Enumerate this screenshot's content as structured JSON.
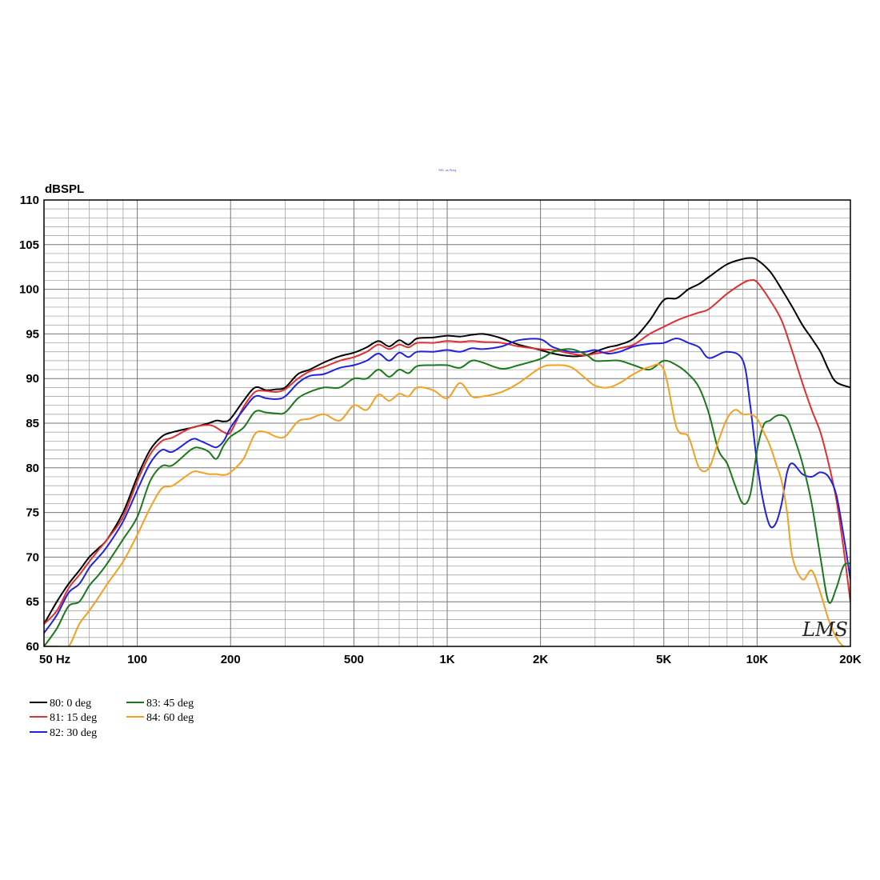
{
  "chart_data": {
    "type": "line",
    "title": "SPL vs Freq",
    "ylabel": "dBSPL",
    "xlabel": "",
    "x_scale": "log",
    "xlim": [
      50,
      20000
    ],
    "ylim": [
      60,
      110
    ],
    "grid": true,
    "legend_position": "bottom-left",
    "x_tick_labels": [
      {
        "value": 50,
        "label": "50  Hz"
      },
      {
        "value": 100,
        "label": "100"
      },
      {
        "value": 200,
        "label": "200"
      },
      {
        "value": 500,
        "label": "500"
      },
      {
        "value": 1000,
        "label": "1K"
      },
      {
        "value": 2000,
        "label": "2K"
      },
      {
        "value": 5000,
        "label": "5K"
      },
      {
        "value": 10000,
        "label": "10K"
      },
      {
        "value": 20000,
        "label": "20K"
      }
    ],
    "y_tick_labels": [
      "60",
      "65",
      "70",
      "75",
      "80",
      "85",
      "90",
      "95",
      "100",
      "105",
      "110"
    ],
    "watermark": "LMS",
    "series": [
      {
        "name": "80: 0 deg",
        "color": "#000000",
        "x": [
          50,
          55,
          60,
          65,
          70,
          75,
          80,
          90,
          100,
          110,
          120,
          130,
          150,
          170,
          180,
          190,
          200,
          220,
          240,
          260,
          280,
          300,
          330,
          360,
          400,
          450,
          500,
          550,
          600,
          650,
          700,
          750,
          800,
          900,
          1000,
          1100,
          1200,
          1300,
          1400,
          1500,
          1700,
          2000,
          2200,
          2500,
          2800,
          3000,
          3300,
          3600,
          4000,
          4500,
          5000,
          5500,
          6000,
          6500,
          7000,
          8000,
          9000,
          9500,
          10000,
          11000,
          12000,
          13000,
          14000,
          15000,
          16000,
          17000,
          18000,
          20000
        ],
        "y": [
          62.5,
          65,
          67,
          68.5,
          70,
          71,
          72,
          75,
          79,
          82,
          83.5,
          84,
          84.5,
          85,
          85.3,
          85.2,
          85.5,
          87.5,
          89,
          88.7,
          88.8,
          89,
          90.5,
          91,
          91.8,
          92.5,
          92.9,
          93.5,
          94.2,
          93.6,
          94.3,
          93.8,
          94.5,
          94.6,
          94.8,
          94.7,
          94.9,
          95,
          94.8,
          94.5,
          93.8,
          93.2,
          92.8,
          92.5,
          92.6,
          93,
          93.5,
          93.8,
          94.5,
          96.5,
          98.8,
          99,
          100,
          100.6,
          101.4,
          102.8,
          103.4,
          103.5,
          103.3,
          102,
          100,
          98,
          96,
          94.5,
          93,
          91,
          89.6,
          89
        ]
      },
      {
        "name": "81: 15 deg",
        "color": "#e03030",
        "x": [
          50,
          55,
          60,
          65,
          70,
          75,
          80,
          90,
          100,
          110,
          120,
          130,
          150,
          170,
          180,
          190,
          200,
          220,
          240,
          260,
          280,
          300,
          330,
          360,
          400,
          450,
          500,
          550,
          600,
          650,
          700,
          750,
          800,
          900,
          1000,
          1100,
          1200,
          1300,
          1500,
          1700,
          2000,
          2200,
          2500,
          2800,
          3000,
          3300,
          3600,
          4000,
          4500,
          5000,
          5500,
          6000,
          6500,
          7000,
          8000,
          9000,
          9500,
          10000,
          11000,
          12000,
          13000,
          14000,
          15000,
          16000,
          17000,
          18000,
          19000,
          20000
        ],
        "y": [
          62.5,
          64,
          66.5,
          68,
          69.5,
          70.8,
          72,
          74.5,
          78.5,
          81.5,
          83,
          83.4,
          84.5,
          84.8,
          84.5,
          84,
          84,
          86.8,
          88.5,
          88.6,
          88.5,
          88.8,
          90,
          90.8,
          91.3,
          92,
          92.4,
          93,
          93.8,
          93.3,
          93.8,
          93.5,
          94,
          94,
          94.2,
          94.1,
          94.2,
          94.1,
          94,
          93.6,
          93.3,
          93.2,
          92.8,
          92.6,
          92.8,
          93,
          93.4,
          93.8,
          95,
          95.8,
          96.5,
          97,
          97.4,
          97.8,
          99.5,
          100.7,
          101,
          100.8,
          98.8,
          96.5,
          93,
          89.5,
          86.5,
          84,
          80.5,
          76.5,
          71,
          65
        ]
      },
      {
        "name": "82: 30 deg",
        "color": "#2222dd",
        "x": [
          50,
          55,
          60,
          65,
          70,
          75,
          80,
          90,
          100,
          110,
          120,
          130,
          150,
          160,
          170,
          180,
          190,
          200,
          220,
          240,
          260,
          280,
          300,
          330,
          360,
          400,
          450,
          500,
          550,
          600,
          650,
          700,
          750,
          800,
          900,
          1000,
          1100,
          1200,
          1300,
          1500,
          1700,
          2000,
          2200,
          2500,
          2800,
          3000,
          3300,
          3600,
          4000,
          4500,
          5000,
          5500,
          6000,
          6500,
          7000,
          8000,
          9000,
          9500,
          10000,
          10500,
          11000,
          11500,
          12000,
          12500,
          13000,
          14000,
          15000,
          16000,
          17000,
          18000,
          19000,
          20000
        ],
        "y": [
          61.5,
          63.5,
          66,
          67,
          68.8,
          70,
          71.2,
          74,
          77.5,
          80.5,
          82,
          81.8,
          83.2,
          83,
          82.6,
          82.3,
          83,
          84.5,
          86.5,
          88,
          87.8,
          87.7,
          88,
          89.5,
          90.3,
          90.5,
          91.2,
          91.5,
          92,
          92.8,
          92,
          92.9,
          92.4,
          93,
          93,
          93.2,
          93,
          93.4,
          93.3,
          93.6,
          94.3,
          94.4,
          93.5,
          93,
          93,
          93.2,
          92.8,
          93,
          93.6,
          93.9,
          94,
          94.5,
          94,
          93.5,
          92.3,
          93,
          92,
          87,
          80.5,
          76,
          73.5,
          73.8,
          76,
          79.5,
          80.5,
          79.3,
          79,
          79.5,
          79,
          77,
          72.5,
          67.5
        ]
      },
      {
        "name": "83: 45 deg",
        "color": "#1a7a1a",
        "x": [
          50,
          55,
          60,
          65,
          70,
          75,
          80,
          90,
          100,
          110,
          120,
          130,
          150,
          160,
          170,
          180,
          190,
          200,
          220,
          240,
          260,
          280,
          300,
          330,
          360,
          400,
          450,
          500,
          550,
          600,
          650,
          700,
          750,
          800,
          900,
          1000,
          1100,
          1200,
          1300,
          1500,
          1700,
          2000,
          2200,
          2500,
          2800,
          3000,
          3300,
          3600,
          4000,
          4500,
          5000,
          5500,
          6000,
          6500,
          7000,
          7500,
          8000,
          8500,
          9000,
          9500,
          10000,
          10500,
          11000,
          11500,
          12000,
          12500,
          13000,
          14000,
          15000,
          16000,
          17000,
          18000,
          19000,
          20000
        ],
        "y": [
          60,
          62,
          64.5,
          65,
          66.8,
          68,
          69.3,
          72,
          74.5,
          78.5,
          80.2,
          80.3,
          82.1,
          82.2,
          81.8,
          81,
          82.5,
          83.5,
          84.5,
          86.3,
          86.2,
          86.1,
          86.2,
          87.8,
          88.5,
          89,
          89,
          90,
          90,
          91,
          90.2,
          91,
          90.6,
          91.4,
          91.5,
          91.5,
          91.2,
          92,
          91.8,
          91.1,
          91.5,
          92.2,
          93,
          93.3,
          92.7,
          92,
          92,
          92,
          91.5,
          91,
          92,
          91.5,
          90.5,
          89,
          86,
          82,
          80.5,
          78,
          76,
          77,
          82,
          84.8,
          85.3,
          85.8,
          85.9,
          85.5,
          84,
          80.5,
          76,
          70,
          65,
          66.5,
          69,
          69.3
        ]
      },
      {
        "name": "84: 60 deg",
        "color": "#f5a020",
        "x": [
          50,
          55,
          60,
          65,
          70,
          75,
          80,
          90,
          100,
          110,
          120,
          130,
          150,
          160,
          170,
          180,
          190,
          200,
          220,
          240,
          260,
          280,
          300,
          330,
          360,
          400,
          450,
          500,
          550,
          600,
          650,
          700,
          750,
          800,
          900,
          1000,
          1100,
          1200,
          1300,
          1500,
          1700,
          2000,
          2200,
          2500,
          2800,
          3000,
          3300,
          3600,
          4000,
          4500,
          5000,
          5500,
          6000,
          6500,
          7000,
          7500,
          8000,
          8500,
          9000,
          9500,
          10000,
          10500,
          11000,
          11500,
          12000,
          12500,
          13000,
          14000,
          15000,
          16000,
          17000,
          18000,
          19000,
          20000
        ],
        "y": [
          60,
          60,
          60,
          62.5,
          64,
          65.5,
          67,
          69.5,
          72.5,
          75.5,
          77.7,
          78,
          79.5,
          79.5,
          79.3,
          79.3,
          79.2,
          79.5,
          81,
          83.8,
          84,
          83.5,
          83.5,
          85.2,
          85.5,
          86,
          85.3,
          87,
          86.5,
          88.2,
          87.5,
          88.3,
          88,
          89,
          88.7,
          87.8,
          89.5,
          88,
          88,
          88.5,
          89.5,
          91.2,
          91.5,
          91.3,
          90,
          89.2,
          89,
          89.5,
          90.5,
          91.3,
          91,
          84.5,
          83.5,
          80,
          80,
          83,
          85.5,
          86.5,
          86,
          86,
          85.5,
          84,
          82.5,
          80.5,
          78.5,
          75,
          70,
          67.5,
          68.5,
          66,
          63,
          61,
          60,
          60
        ]
      }
    ]
  }
}
